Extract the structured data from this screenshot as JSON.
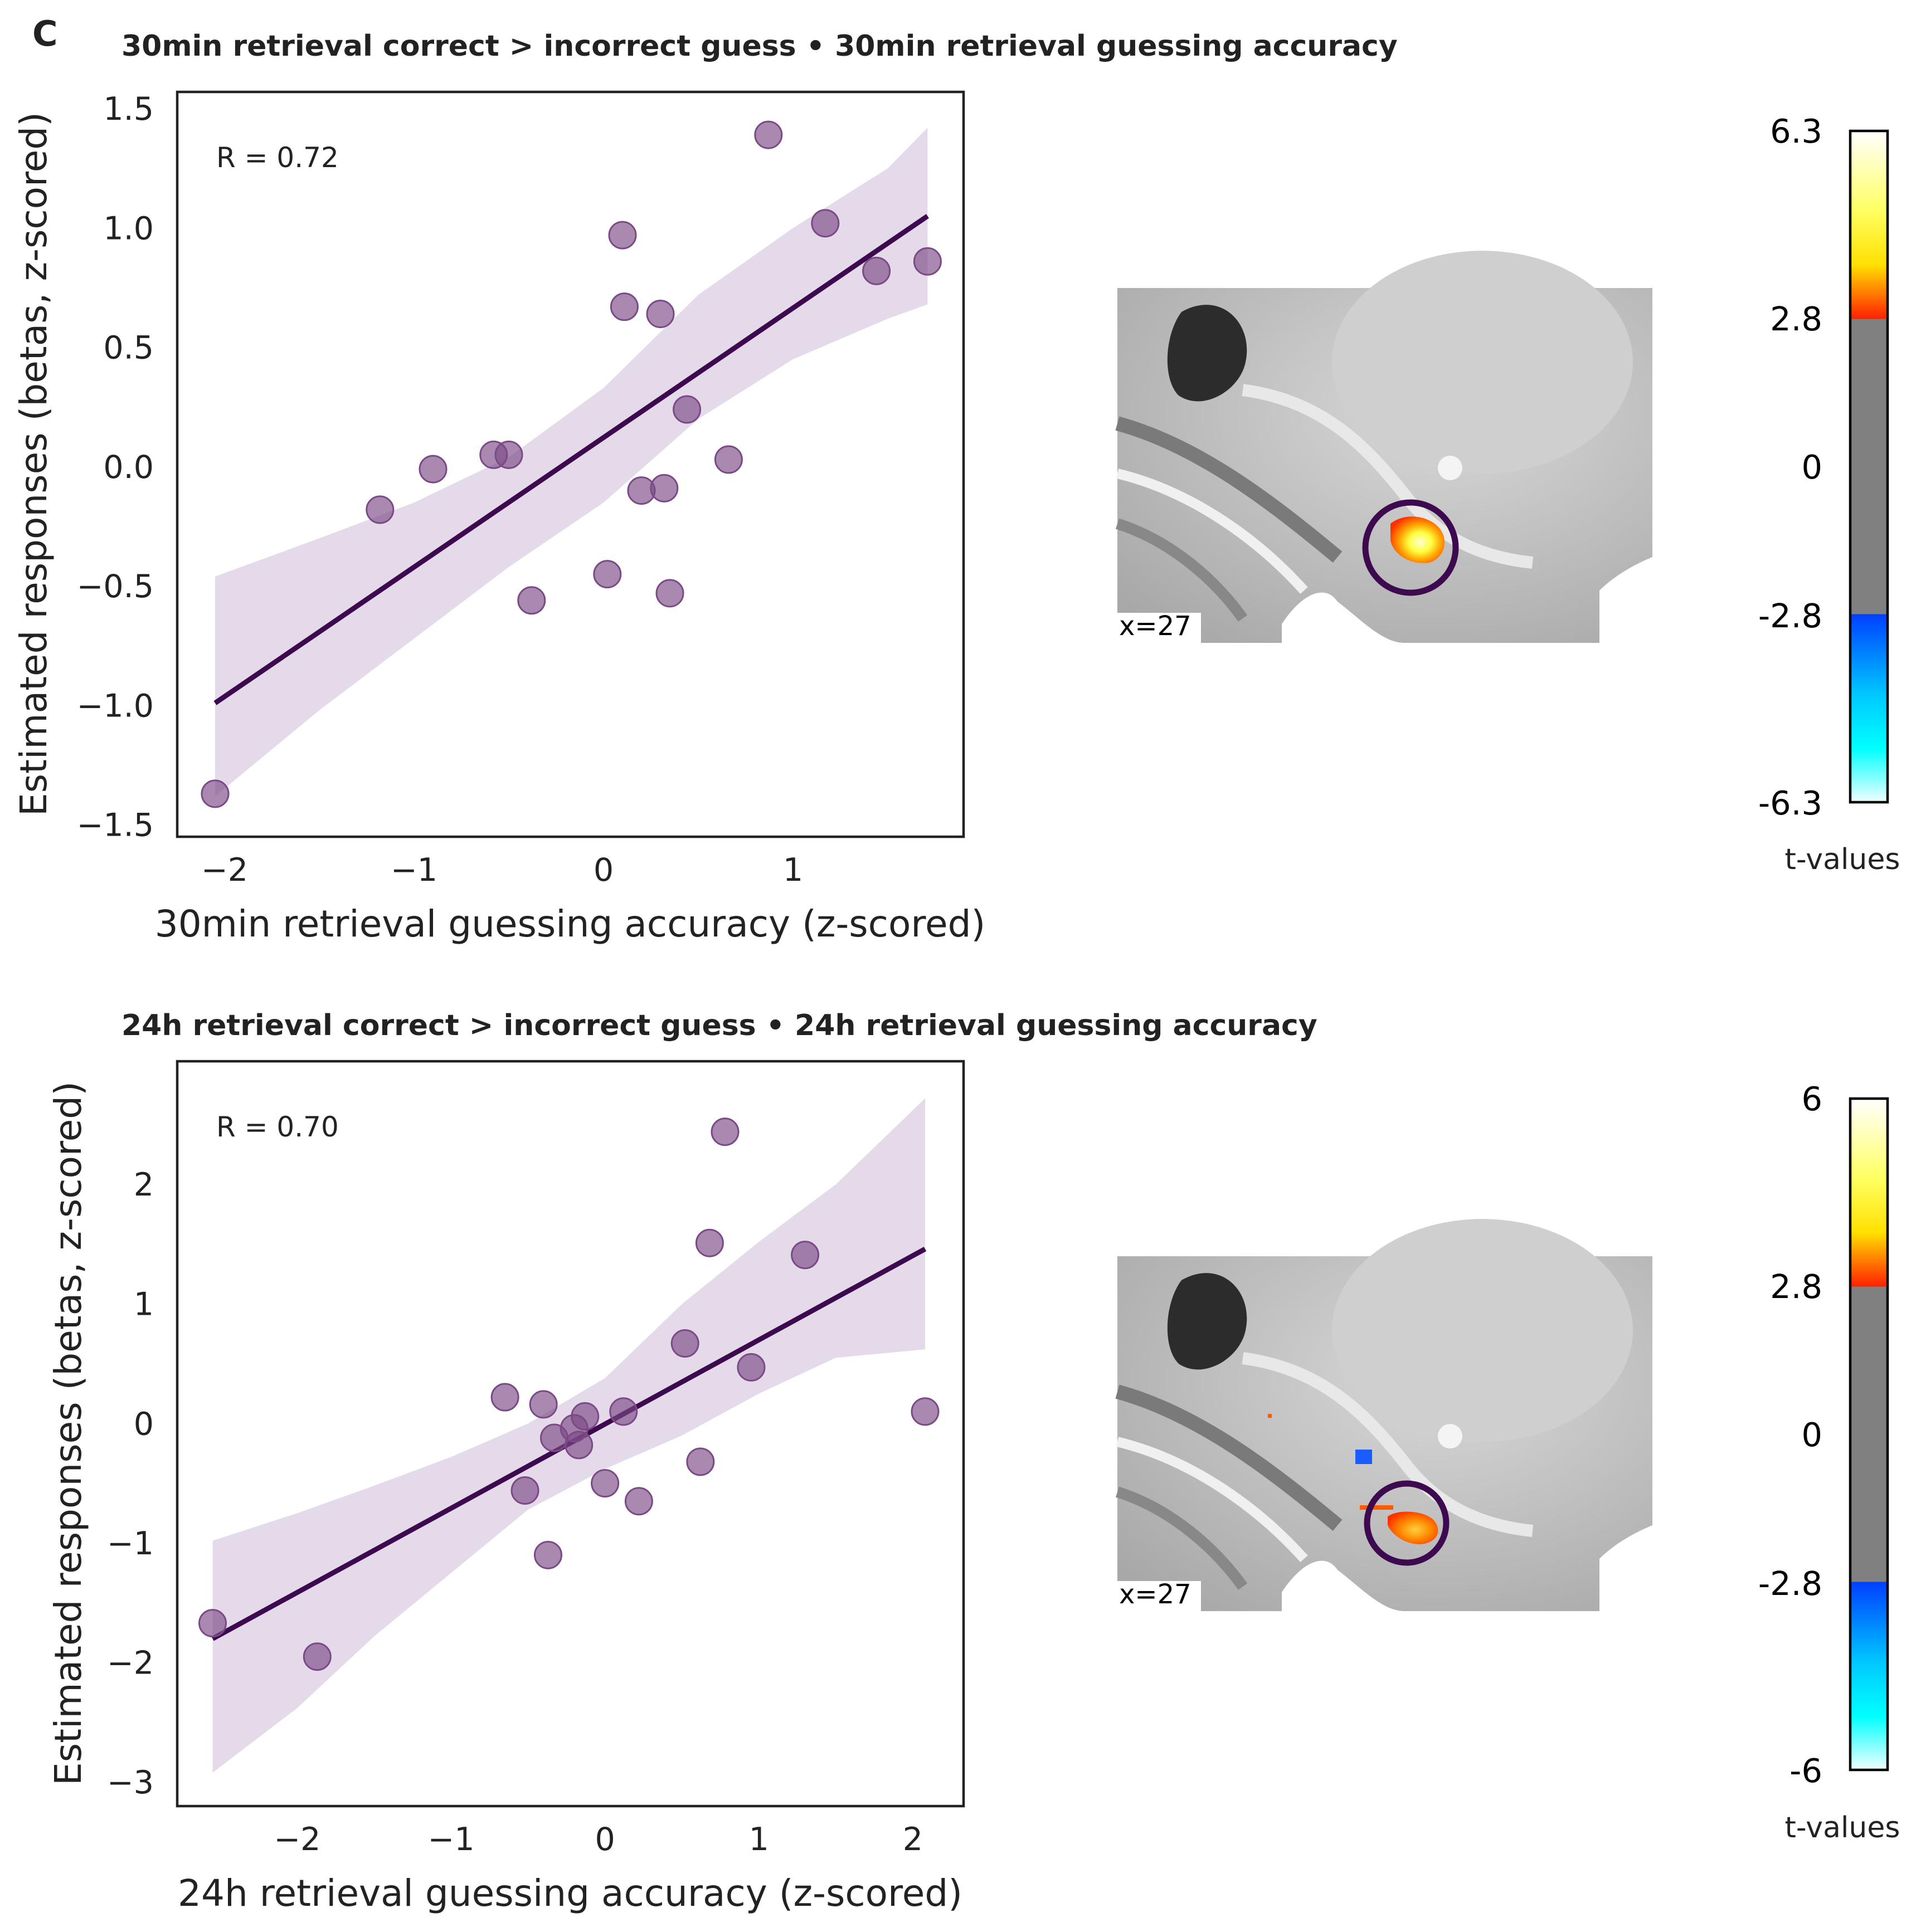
{
  "panel_letter": "C",
  "chart_data": [
    {
      "type": "scatter",
      "title": "30min retrieval correct > incorrect guess • 30min retrieval guessing accuracy",
      "xlabel": "30min retrieval guessing accuracy (z-scored)",
      "ylabel": "Estimated responses (betas, z-scored)",
      "annotation": "R = 0.72",
      "xlim": [
        -2.25,
        1.9
      ],
      "ylim": [
        -1.55,
        1.57
      ],
      "xticks": [
        -2,
        -1,
        0,
        1
      ],
      "xtick_labels": [
        "−2",
        "−1",
        "0",
        "1"
      ],
      "yticks": [
        -1.5,
        -1.0,
        -0.5,
        0.0,
        0.5,
        1.0,
        1.5
      ],
      "ytick_labels": [
        "−1.5",
        "−1.0",
        "−0.5",
        "0.0",
        "0.5",
        "1.0",
        "1.5"
      ],
      "grid": false,
      "point_color": "#7b4a86",
      "line_color": "#3d0a4f",
      "band_color": "#dccde2",
      "points": [
        {
          "x": -2.05,
          "y": -1.37
        },
        {
          "x": -1.18,
          "y": -0.18
        },
        {
          "x": -0.9,
          "y": -0.01
        },
        {
          "x": -0.58,
          "y": 0.05
        },
        {
          "x": -0.5,
          "y": 0.05
        },
        {
          "x": -0.38,
          "y": -0.56
        },
        {
          "x": 0.02,
          "y": -0.45
        },
        {
          "x": 0.1,
          "y": 0.97
        },
        {
          "x": 0.11,
          "y": 0.67
        },
        {
          "x": 0.2,
          "y": -0.1
        },
        {
          "x": 0.3,
          "y": 0.64
        },
        {
          "x": 0.32,
          "y": -0.09
        },
        {
          "x": 0.35,
          "y": -0.53
        },
        {
          "x": 0.44,
          "y": 0.24
        },
        {
          "x": 0.66,
          "y": 0.03
        },
        {
          "x": 0.87,
          "y": 1.39
        },
        {
          "x": 1.17,
          "y": 1.02
        },
        {
          "x": 1.44,
          "y": 0.82
        },
        {
          "x": 1.71,
          "y": 0.86
        }
      ],
      "fit": {
        "x": [
          -2.05,
          1.71
        ],
        "y": [
          -0.99,
          1.05
        ]
      },
      "ci_band": {
        "x": [
          -2.05,
          -1.5,
          -1.0,
          -0.5,
          0.0,
          0.5,
          1.0,
          1.5,
          1.71
        ],
        "upper": [
          -0.46,
          -0.3,
          -0.15,
          0.04,
          0.33,
          0.72,
          1.0,
          1.25,
          1.42
        ],
        "lower": [
          -1.38,
          -1.02,
          -0.72,
          -0.42,
          -0.15,
          0.2,
          0.45,
          0.62,
          0.68
        ]
      }
    },
    {
      "type": "scatter",
      "title": "24h retrieval correct > incorrect guess • 24h retrieval guessing accuracy",
      "xlabel": "24h retrieval guessing accuracy (z-scored)",
      "ylabel": "Estimated responses (betas, z-scored)",
      "annotation": "R = 0.70",
      "xlim": [
        -2.78,
        2.33
      ],
      "ylim": [
        -3.2,
        3.03
      ],
      "xticks": [
        -2,
        -1,
        0,
        1,
        2
      ],
      "xtick_labels": [
        "−2",
        "−1",
        "0",
        "1",
        "2"
      ],
      "yticks": [
        -3,
        -2,
        -1,
        0,
        1,
        2
      ],
      "ytick_labels": [
        "−3",
        "−2",
        "−1",
        "0",
        "1",
        "2"
      ],
      "grid": false,
      "point_color": "#7b4a86",
      "line_color": "#3d0a4f",
      "band_color": "#dccde2",
      "points": [
        {
          "x": -2.55,
          "y": -1.67
        },
        {
          "x": -1.87,
          "y": -1.95
        },
        {
          "x": -0.65,
          "y": 0.22
        },
        {
          "x": -0.52,
          "y": -0.56
        },
        {
          "x": -0.4,
          "y": 0.16
        },
        {
          "x": -0.37,
          "y": -1.1
        },
        {
          "x": -0.33,
          "y": -0.12
        },
        {
          "x": -0.2,
          "y": -0.04
        },
        {
          "x": -0.17,
          "y": -0.18
        },
        {
          "x": -0.13,
          "y": 0.06
        },
        {
          "x": 0.0,
          "y": -0.5
        },
        {
          "x": 0.12,
          "y": 0.1
        },
        {
          "x": 0.22,
          "y": -0.65
        },
        {
          "x": 0.52,
          "y": 0.67
        },
        {
          "x": 0.62,
          "y": -0.32
        },
        {
          "x": 0.68,
          "y": 1.51
        },
        {
          "x": 0.78,
          "y": 2.44
        },
        {
          "x": 0.95,
          "y": 0.47
        },
        {
          "x": 1.3,
          "y": 1.41
        },
        {
          "x": 2.08,
          "y": 0.1
        }
      ],
      "fit": {
        "x": [
          -2.55,
          2.08
        ],
        "y": [
          -1.8,
          1.46
        ]
      },
      "ci_band": {
        "x": [
          -2.55,
          -2.0,
          -1.5,
          -1.0,
          -0.5,
          0.0,
          0.5,
          1.0,
          1.5,
          2.08
        ],
        "upper": [
          -0.98,
          -0.75,
          -0.52,
          -0.28,
          0.0,
          0.38,
          1.0,
          1.52,
          2.0,
          2.72
        ],
        "lower": [
          -2.92,
          -2.38,
          -1.78,
          -1.25,
          -0.72,
          -0.38,
          -0.1,
          0.25,
          0.55,
          0.62
        ]
      }
    }
  ],
  "brain_panels": [
    {
      "slice_label": "x=27",
      "colorbar": {
        "label": "t-values",
        "ticks": [
          "6.3",
          "2.8",
          "0",
          "-2.8",
          "-6.3"
        ]
      }
    },
    {
      "slice_label": "x=27",
      "colorbar": {
        "label": "t-values",
        "ticks": [
          "6",
          "2.8",
          "0",
          "-2.8",
          "-6"
        ]
      }
    }
  ]
}
